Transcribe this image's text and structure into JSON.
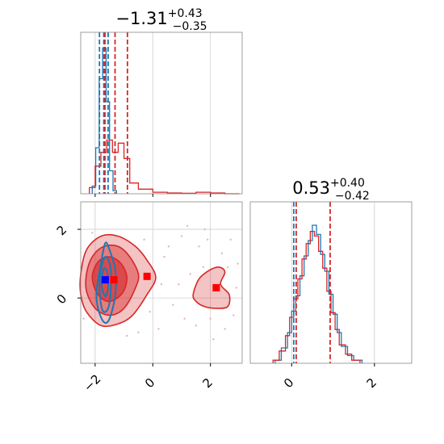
{
  "chart_data": [
    {
      "type": "histogram",
      "panel": "marginal-p1",
      "title_value": "−1.31",
      "title_plus": "+0.43",
      "title_minus": "−0.35",
      "xlim": [
        -2.5,
        3.1
      ],
      "xgrid": [
        -2,
        0,
        2
      ],
      "series": [
        {
          "color": "#1f77b4",
          "bin_edges": [
            -2.1,
            -1.98,
            -1.86,
            -1.74,
            -1.62,
            -1.5,
            -1.38,
            -1.26
          ],
          "counts": [
            0.05,
            0.3,
            0.75,
            0.95,
            0.6,
            0.15,
            0.02
          ]
        },
        {
          "color": "#d62728",
          "bin_edges": [
            -2.2,
            -2.0,
            -1.8,
            -1.6,
            -1.4,
            -1.2,
            -1.0,
            -0.8,
            -0.5,
            0.0,
            0.5,
            1.0,
            1.5,
            2.0,
            2.5,
            3.0
          ],
          "counts": [
            0.04,
            0.18,
            0.27,
            0.35,
            0.27,
            0.33,
            0.23,
            0.07,
            0.03,
            0.01,
            0.005,
            0.003,
            0.01,
            0.005,
            0.0
          ]
        }
      ],
      "quantile_lines": [
        {
          "color": "#1f77b4",
          "x": [
            -1.85,
            -1.7,
            -1.55
          ]
        },
        {
          "color": "#d62728",
          "x": [
            -1.66,
            -1.31,
            -0.88
          ]
        }
      ]
    },
    {
      "type": "histogram",
      "panel": "marginal-p2",
      "title_value": "0.53",
      "title_plus": "+0.40",
      "title_minus": "−0.42",
      "xlim": [
        -1.0,
        2.9
      ],
      "xticks": [
        0,
        2
      ],
      "xtick_labels": [
        "0",
        "2"
      ],
      "series": [
        {
          "color": "#1f77b4",
          "bin_edges": [
            -0.4,
            -0.25,
            -0.1,
            0.0,
            0.1,
            0.2,
            0.3,
            0.4,
            0.5,
            0.6,
            0.7,
            0.8,
            0.9,
            1.0,
            1.1,
            1.2,
            1.35,
            1.5,
            1.7
          ],
          "counts": [
            0.02,
            0.1,
            0.2,
            0.34,
            0.44,
            0.57,
            0.7,
            0.8,
            0.9,
            0.84,
            0.71,
            0.6,
            0.45,
            0.32,
            0.2,
            0.11,
            0.05,
            0.02
          ]
        },
        {
          "color": "#d62728",
          "bin_edges": [
            -0.45,
            -0.3,
            -0.15,
            -0.05,
            0.05,
            0.15,
            0.25,
            0.35,
            0.45,
            0.55,
            0.65,
            0.75,
            0.85,
            0.95,
            1.05,
            1.15,
            1.3,
            1.45,
            1.65
          ],
          "counts": [
            0.02,
            0.08,
            0.18,
            0.3,
            0.42,
            0.55,
            0.68,
            0.78,
            0.86,
            0.83,
            0.73,
            0.62,
            0.47,
            0.33,
            0.22,
            0.12,
            0.06,
            0.02
          ]
        }
      ],
      "quantile_lines": [
        {
          "color": "#1f77b4",
          "x": [
            0.05
          ]
        },
        {
          "color": "#d62728",
          "x": [
            0.11,
            0.93
          ]
        }
      ]
    },
    {
      "type": "contour",
      "panel": "joint-p1-p2",
      "xlim": [
        -2.5,
        3.1
      ],
      "ylim": [
        -1.9,
        2.8
      ],
      "xticks": [
        -2,
        0,
        2
      ],
      "xtick_labels": [
        "−2",
        "0",
        "2"
      ],
      "yticks": [
        0,
        2
      ],
      "ytick_labels": [
        "0",
        "2"
      ],
      "xgrid": [
        -2,
        0,
        2
      ],
      "ygrid": [
        0,
        2
      ],
      "red_levels": [
        [
          [
            -2.5,
            0.7
          ],
          [
            -2.3,
            1.4
          ],
          [
            -1.8,
            1.8
          ],
          [
            -1.2,
            1.8
          ],
          [
            -0.6,
            1.5
          ],
          [
            -0.2,
            1.1
          ],
          [
            0.1,
            0.6
          ],
          [
            -0.2,
            0.1
          ],
          [
            -0.7,
            -0.5
          ],
          [
            -1.2,
            -0.75
          ],
          [
            -1.8,
            -0.8
          ],
          [
            -2.3,
            -0.4
          ],
          [
            -2.5,
            0.1
          ]
        ],
        [
          [
            -2.3,
            0.7
          ],
          [
            -2.1,
            1.2
          ],
          [
            -1.7,
            1.5
          ],
          [
            -1.2,
            1.5
          ],
          [
            -0.8,
            1.2
          ],
          [
            -0.5,
            0.7
          ],
          [
            -0.6,
            0.3
          ],
          [
            -1.0,
            -0.3
          ],
          [
            -1.5,
            -0.5
          ],
          [
            -2.0,
            -0.3
          ],
          [
            -2.3,
            0.2
          ]
        ],
        [
          [
            -2.1,
            0.6
          ],
          [
            -1.9,
            1.05
          ],
          [
            -1.5,
            1.2
          ],
          [
            -1.1,
            1.0
          ],
          [
            -0.9,
            0.6
          ],
          [
            -1.05,
            0.15
          ],
          [
            -1.5,
            -0.1
          ],
          [
            -1.9,
            0.1
          ]
        ]
      ],
      "red_island": [
        [
          1.4,
          0.1
        ],
        [
          1.6,
          0.55
        ],
        [
          1.95,
          0.8
        ],
        [
          2.3,
          0.9
        ],
        [
          2.5,
          0.75
        ],
        [
          2.35,
          0.4
        ],
        [
          2.65,
          0.1
        ],
        [
          2.6,
          -0.25
        ],
        [
          2.2,
          -0.3
        ],
        [
          1.8,
          -0.25
        ],
        [
          1.5,
          -0.1
        ]
      ],
      "blue_contours": [
        [
          [
            -1.95,
            0.2
          ],
          [
            -1.8,
            1.0
          ],
          [
            -1.65,
            1.6
          ],
          [
            -1.5,
            1.4
          ],
          [
            -1.3,
            0.8
          ],
          [
            -1.3,
            0.1
          ],
          [
            -1.5,
            -0.6
          ],
          [
            -1.7,
            -0.7
          ],
          [
            -1.9,
            -0.3
          ]
        ],
        [
          [
            -1.85,
            0.35
          ],
          [
            -1.75,
            1.0
          ],
          [
            -1.62,
            1.2
          ],
          [
            -1.47,
            0.9
          ],
          [
            -1.45,
            0.3
          ],
          [
            -1.55,
            -0.3
          ],
          [
            -1.75,
            -0.35
          ]
        ],
        [
          [
            -1.78,
            0.4
          ],
          [
            -1.7,
            0.85
          ],
          [
            -1.58,
            0.75
          ],
          [
            -1.55,
            0.3
          ],
          [
            -1.65,
            0.05
          ]
        ]
      ],
      "markers": [
        {
          "color": "#0000ff",
          "x": -1.65,
          "y": 0.53
        },
        {
          "color": "#ff0000",
          "x": -1.35,
          "y": 0.53
        },
        {
          "color": "#ff0000",
          "x": -0.2,
          "y": 0.63
        },
        {
          "color": "#ff0000",
          "x": 2.2,
          "y": 0.3
        }
      ],
      "scatter_points": [
        [
          0.4,
          1.2
        ],
        [
          0.9,
          0.4
        ],
        [
          1.1,
          -0.6
        ],
        [
          1.6,
          1.5
        ],
        [
          1.8,
          2.0
        ],
        [
          2.5,
          -0.9
        ],
        [
          2.7,
          1.7
        ],
        [
          0.2,
          -0.9
        ],
        [
          1.3,
          0.7
        ],
        [
          2.9,
          0.3
        ],
        [
          1.0,
          1.8
        ],
        [
          0.7,
          -0.2
        ],
        [
          2.1,
          -1.2
        ],
        [
          1.5,
          -0.8
        ],
        [
          0.3,
          0.4
        ],
        [
          2.8,
          -0.5
        ],
        [
          -0.3,
          1.7
        ],
        [
          -0.5,
          -1.0
        ],
        [
          1.2,
          2.1
        ],
        [
          2.4,
          1.3
        ],
        [
          -2.4,
          -0.6
        ],
        [
          -2.1,
          1.9
        ],
        [
          -0.1,
          -0.4
        ],
        [
          1.75,
          0.9
        ],
        [
          2.0,
          -0.6
        ],
        [
          0.55,
          1.5
        ],
        [
          -0.9,
          -1.1
        ],
        [
          2.95,
          1.0
        ],
        [
          1.9,
          1.7
        ],
        [
          2.6,
          0.9
        ]
      ]
    }
  ]
}
